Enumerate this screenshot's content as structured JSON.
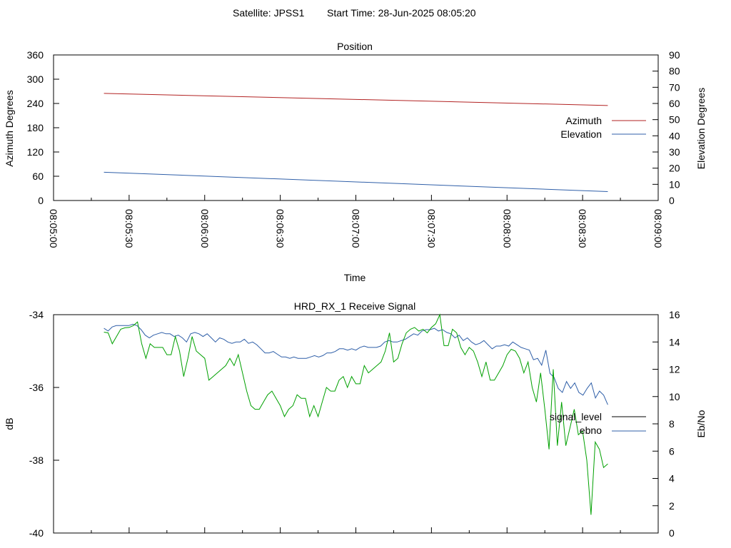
{
  "header": {
    "satellite": "Satellite: JPSS1",
    "start_time": "Start Time: 28-Jun-2025 08:05:20"
  },
  "colors": {
    "azimuth": "#b22222",
    "elevation": "#2f5fa8",
    "signal_level": "#00a000",
    "ebno": "#2f5fa8",
    "signal_legend": "#000000"
  },
  "chart_data": [
    {
      "type": "line",
      "title": "Position",
      "xlabel": "Time",
      "ylabel": "Azimuth Degrees",
      "y2label": "Elevation Degrees",
      "x_ticks": [
        "08:05:00",
        "08:05:30",
        "08:06:00",
        "08:06:30",
        "08:07:00",
        "08:07:30",
        "08:08:00",
        "08:08:30",
        "08:09:00"
      ],
      "xlim_seconds_after_0805": [
        0,
        240
      ],
      "ylim": [
        0,
        360
      ],
      "yticks": [
        0,
        60,
        120,
        180,
        240,
        300,
        360
      ],
      "y2lim": [
        0,
        90
      ],
      "y2ticks": [
        0,
        10,
        20,
        30,
        40,
        50,
        60,
        70,
        80,
        90
      ],
      "legend_position": "right",
      "series": [
        {
          "name": "Azimuth",
          "axis": "y",
          "x": [
            "08:05:20",
            "08:08:40"
          ],
          "values": [
            265,
            235
          ]
        },
        {
          "name": "Elevation",
          "axis": "y2",
          "x": [
            "08:05:20",
            "08:08:40"
          ],
          "values": [
            17.5,
            5.5
          ]
        }
      ]
    },
    {
      "type": "line",
      "title": "HRD_RX_1 Receive Signal",
      "ylabel": "dB",
      "y2label": "Eb/No",
      "x_range": [
        "08:05:00",
        "08:09:00"
      ],
      "ylim": [
        -40,
        -34
      ],
      "yticks": [
        -40,
        -38,
        -36,
        -34
      ],
      "y2lim": [
        0,
        16
      ],
      "y2ticks": [
        0,
        2,
        4,
        6,
        8,
        10,
        12,
        14,
        16
      ],
      "legend_position": "right",
      "series": [
        {
          "name": "signal_level",
          "axis": "y",
          "values": [
            -34.48,
            -34.5,
            -34.8,
            -34.6,
            -34.4,
            -34.36,
            -34.35,
            -34.3,
            -34.2,
            -34.8,
            -35.2,
            -34.8,
            -34.9,
            -34.9,
            -34.9,
            -35.1,
            -35.1,
            -34.6,
            -35.0,
            -35.7,
            -35.2,
            -34.6,
            -35.0,
            -35.1,
            -35.2,
            -35.8,
            -35.7,
            -35.6,
            -35.5,
            -35.4,
            -35.2,
            -35.4,
            -35.1,
            -35.6,
            -36.1,
            -36.5,
            -36.6,
            -36.6,
            -36.4,
            -36.2,
            -36.1,
            -36.3,
            -36.5,
            -36.8,
            -36.6,
            -36.5,
            -36.2,
            -36.3,
            -36.3,
            -36.8,
            -36.5,
            -36.8,
            -36.4,
            -36.0,
            -36.1,
            -36.1,
            -35.8,
            -35.7,
            -36.0,
            -35.7,
            -35.9,
            -35.9,
            -35.4,
            -35.6,
            -35.5,
            -35.4,
            -35.3,
            -35.0,
            -34.5,
            -35.3,
            -35.2,
            -34.8,
            -34.5,
            -34.4,
            -34.35,
            -34.45,
            -34.4,
            -34.5,
            -34.35,
            -34.25,
            -34.0,
            -34.85,
            -34.85,
            -34.4,
            -34.5,
            -34.9,
            -35.1,
            -34.9,
            -35.0,
            -35.3,
            -35.7,
            -35.3,
            -35.8,
            -35.8,
            -35.6,
            -35.4,
            -35.1,
            -34.95,
            -35.0,
            -35.2,
            -35.6,
            -35.3,
            -36.0,
            -36.4,
            -35.6,
            -36.6,
            -37.7,
            -35.5,
            -37.6,
            -36.4,
            -37.6,
            -37.1,
            -36.6,
            -37.3,
            -37.2,
            -38.0,
            -39.5,
            -37.5,
            -37.7,
            -38.2,
            -38.1
          ]
        },
        {
          "name": "ebno",
          "axis": "y2",
          "values": [
            15.0,
            14.8,
            15.1,
            15.2,
            15.2,
            15.2,
            15.2,
            15.3,
            15.2,
            14.9,
            14.5,
            14.3,
            14.5,
            14.6,
            14.7,
            14.6,
            14.6,
            14.4,
            14.5,
            14.3,
            14.0,
            14.6,
            14.7,
            14.6,
            14.4,
            14.6,
            14.3,
            14.0,
            14.3,
            14.2,
            14.0,
            13.9,
            14.0,
            14.0,
            14.2,
            13.9,
            14.0,
            13.8,
            13.5,
            13.2,
            13.2,
            13.3,
            13.1,
            12.9,
            12.9,
            12.8,
            12.9,
            12.8,
            12.8,
            12.8,
            12.9,
            13.0,
            12.9,
            13.0,
            13.2,
            13.2,
            13.3,
            13.5,
            13.5,
            13.4,
            13.5,
            13.4,
            13.6,
            13.7,
            13.6,
            13.6,
            13.6,
            13.7,
            14.0,
            14.1,
            14.0,
            14.0,
            14.1,
            14.2,
            14.4,
            14.6,
            14.5,
            14.8,
            14.9,
            14.9,
            15.0,
            14.8,
            14.9,
            14.7,
            14.6,
            14.3,
            14.5,
            14.1,
            14.3,
            14.0,
            13.8,
            13.9,
            14.1,
            13.8,
            13.5,
            13.7,
            13.7,
            13.8,
            13.7,
            14.0,
            13.8,
            13.6,
            13.5,
            13.4,
            12.7,
            12.8,
            12.3,
            13.4,
            11.7,
            11.4,
            10.6,
            10.3,
            11.1,
            10.6,
            11.0,
            10.3,
            10.1,
            10.6,
            11.0,
            9.9,
            10.4,
            10.1,
            9.4
          ]
        }
      ]
    }
  ]
}
